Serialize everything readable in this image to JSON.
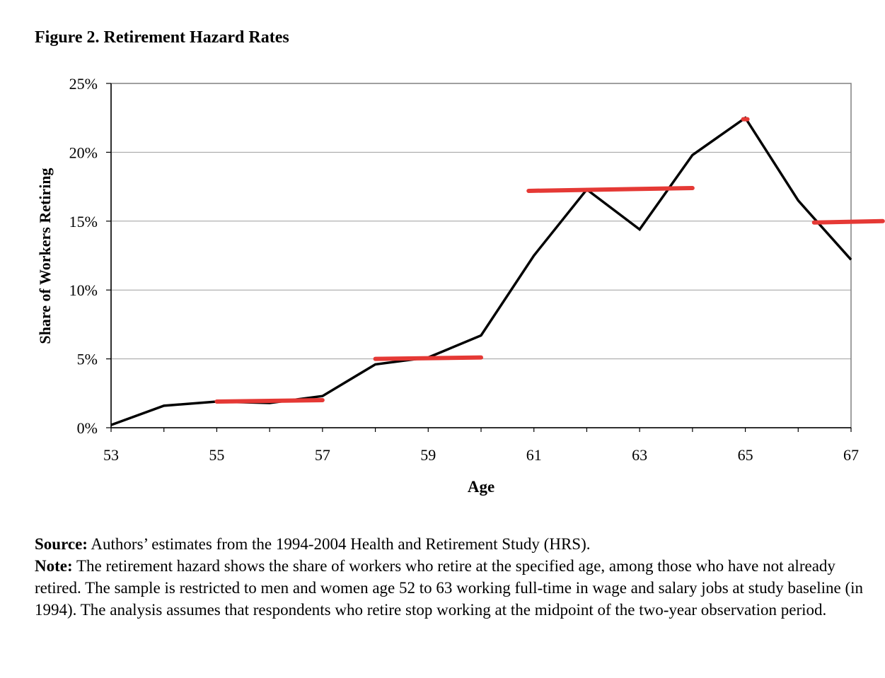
{
  "figure": {
    "title": "Figure 2. Retirement Hazard Rates"
  },
  "chart_data": {
    "type": "line",
    "xlabel": "Age",
    "ylabel": "Share of Workers Retiring",
    "x": [
      53,
      54,
      55,
      56,
      57,
      58,
      59,
      60,
      61,
      62,
      63,
      64,
      65,
      66,
      67
    ],
    "xlim": [
      53,
      67
    ],
    "xticks": [
      53,
      55,
      57,
      59,
      61,
      63,
      65,
      67
    ],
    "ylim": [
      0,
      25
    ],
    "yticks": [
      0,
      5,
      10,
      15,
      20,
      25
    ],
    "ytick_labels": [
      "0%",
      "5%",
      "10%",
      "15%",
      "20%",
      "25%"
    ],
    "grid": "horizontal",
    "series": [
      {
        "values": [
          0.2,
          1.6,
          1.9,
          1.8,
          2.3,
          4.6,
          5.1,
          6.7,
          12.5,
          17.3,
          14.4,
          19.8,
          22.5,
          16.5,
          12.2
        ],
        "color": "#000000"
      }
    ],
    "segments": [
      {
        "x_start": 55,
        "x_end": 57,
        "y_start": 1.9,
        "y_end": 2.0,
        "color": "#e53935"
      },
      {
        "x_start": 58,
        "x_end": 60,
        "y_start": 5.0,
        "y_end": 5.1,
        "color": "#e53935"
      },
      {
        "x_start": 60.9,
        "x_end": 64,
        "y_start": 17.2,
        "y_end": 17.4,
        "color": "#e53935"
      },
      {
        "x_start": 64.96,
        "x_end": 65.04,
        "y_start": 22.4,
        "y_end": 22.4,
        "color": "#e53935"
      },
      {
        "x_start": 66.3,
        "x_end": 67.6,
        "y_start": 14.9,
        "y_end": 15.0,
        "color": "#e53935"
      }
    ]
  },
  "notes": {
    "source_label": "Source:",
    "source_text": " Authors’ estimates from the 1994-2004 Health and Retirement Study (HRS).",
    "note_label": "Note:",
    "note_text": " The retirement hazard shows the share of workers who retire at the specified age, among those who have not already retired. The sample is restricted to men and women age 52 to 63 working full-time in wage and salary jobs at study baseline (in 1994). The analysis assumes that respondents who retire stop working at the midpoint of the two-year observation period."
  }
}
